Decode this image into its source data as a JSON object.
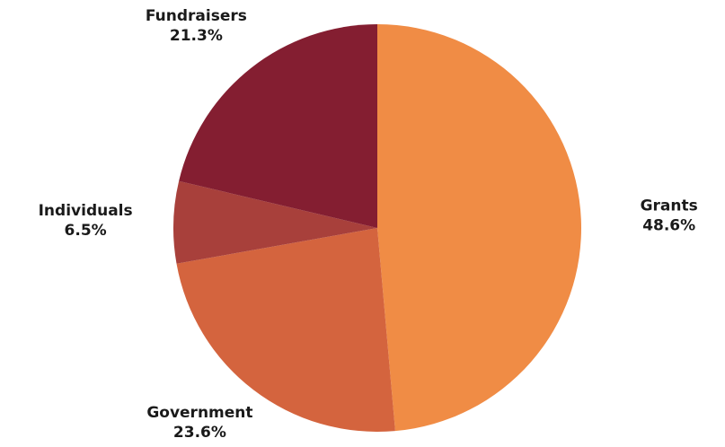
{
  "chart_data": {
    "type": "pie",
    "title": "",
    "slices": [
      {
        "label": "Grants",
        "value": 48.6,
        "display": "48.6%",
        "color": "#F08C45"
      },
      {
        "label": "Government",
        "value": 23.6,
        "display": "23.6%",
        "color": "#D4643E"
      },
      {
        "label": "Individuals",
        "value": 6.5,
        "display": "6.5%",
        "color": "#A8403B"
      },
      {
        "label": "Fundraisers",
        "value": 21.3,
        "display": "21.3%",
        "color": "#841E31"
      }
    ],
    "start_angle": "12 o'clock",
    "direction": "clockwise",
    "legend": "none",
    "data_labels": "outside, name above percent"
  }
}
